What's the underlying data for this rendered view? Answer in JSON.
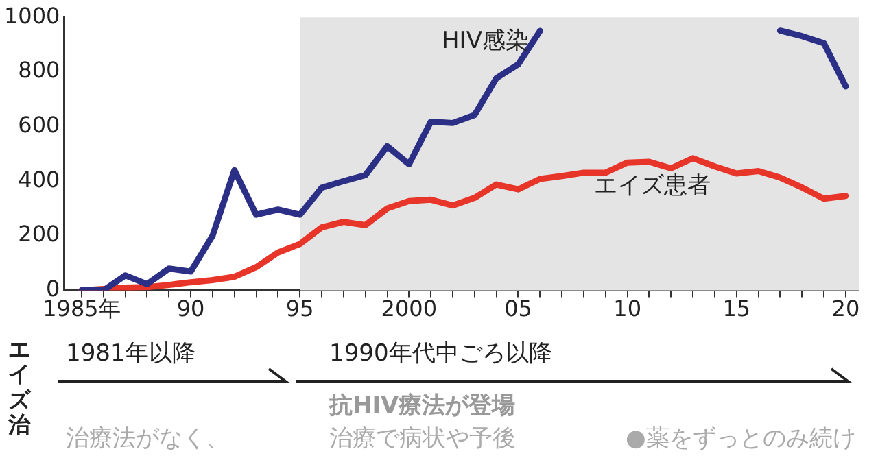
{
  "chart_data": {
    "type": "line",
    "x": [
      1985,
      1986,
      1987,
      1988,
      1989,
      1990,
      1991,
      1992,
      1993,
      1994,
      1995,
      1996,
      1997,
      1998,
      1999,
      2000,
      2001,
      2002,
      2003,
      2004,
      2005,
      2006,
      2007,
      2008,
      2009,
      2010,
      2011,
      2012,
      2013,
      2014,
      2015,
      2016,
      2017,
      2018,
      2019,
      2020
    ],
    "series": [
      {
        "name": "HIV感染",
        "color": "#2b2f86",
        "values": [
          0,
          0,
          55,
          23,
          80,
          69,
          200,
          440,
          277,
          296,
          277,
          376,
          400,
          422,
          528,
          462,
          618,
          613,
          642,
          777,
          828,
          950,
          null,
          null,
          null,
          null,
          null,
          null,
          null,
          null,
          null,
          null,
          951,
          931,
          905,
          747
        ]
      },
      {
        "name": "エイズ患者",
        "color": "#e8352a",
        "values": [
          0,
          5,
          10,
          12,
          20,
          30,
          38,
          50,
          85,
          139,
          170,
          231,
          251,
          239,
          300,
          327,
          332,
          311,
          339,
          388,
          370,
          408,
          419,
          431,
          431,
          468,
          471,
          447,
          484,
          454,
          428,
          437,
          413,
          377,
          336,
          346
        ]
      }
    ],
    "xlim": [
      1984.2,
      2020.6
    ],
    "xticks": [
      {
        "value": 1985,
        "label": "1985年"
      },
      {
        "value": 1986,
        "label": null
      },
      {
        "value": 1987,
        "label": null
      },
      {
        "value": 1988,
        "label": null
      },
      {
        "value": 1989,
        "label": null
      },
      {
        "value": 1990,
        "label": "90"
      },
      {
        "value": 1991,
        "label": null
      },
      {
        "value": 1992,
        "label": null
      },
      {
        "value": 1993,
        "label": null
      },
      {
        "value": 1994,
        "label": null
      },
      {
        "value": 1995,
        "label": "95"
      },
      {
        "value": 1996,
        "label": null
      },
      {
        "value": 1997,
        "label": null
      },
      {
        "value": 1998,
        "label": null
      },
      {
        "value": 1999,
        "label": null
      },
      2000,
      {
        "value": 2001,
        "label": null
      },
      {
        "value": 2002,
        "label": null
      },
      {
        "value": 2003,
        "label": null
      },
      {
        "value": 2004,
        "label": null
      },
      {
        "value": 2005,
        "label": "05"
      },
      {
        "value": 2006,
        "label": null
      },
      {
        "value": 2007,
        "label": null
      },
      {
        "value": 2008,
        "label": null
      },
      {
        "value": 2009,
        "label": null
      },
      {
        "value": 2010,
        "label": "10"
      },
      {
        "value": 2011,
        "label": null
      },
      {
        "value": 2012,
        "label": null
      },
      {
        "value": 2013,
        "label": null
      },
      {
        "value": 2014,
        "label": null
      },
      {
        "value": 2015,
        "label": "15"
      },
      {
        "value": 2016,
        "label": null
      },
      {
        "value": 2017,
        "label": null
      },
      {
        "value": 2018,
        "label": null
      },
      {
        "value": 2019,
        "label": null
      },
      {
        "value": 2020,
        "label": "20"
      }
    ],
    "ylim": [
      0,
      1000
    ],
    "yticks": [
      0,
      200,
      400,
      600,
      800,
      1000
    ],
    "bands": [
      {
        "axis": "x",
        "from": 1995,
        "to": 2020.6,
        "color": "#e4e4e4"
      }
    ],
    "marker": "none",
    "line_style": "solid",
    "legend": false,
    "annotations": [
      "エイズ治",
      "1981年以降",
      "1990年代中ごろ以降",
      "抗HIV療法が登場",
      "治療法がなく、",
      "治療で病状や予後",
      "●薬をずっとのみ続け"
    ]
  }
}
